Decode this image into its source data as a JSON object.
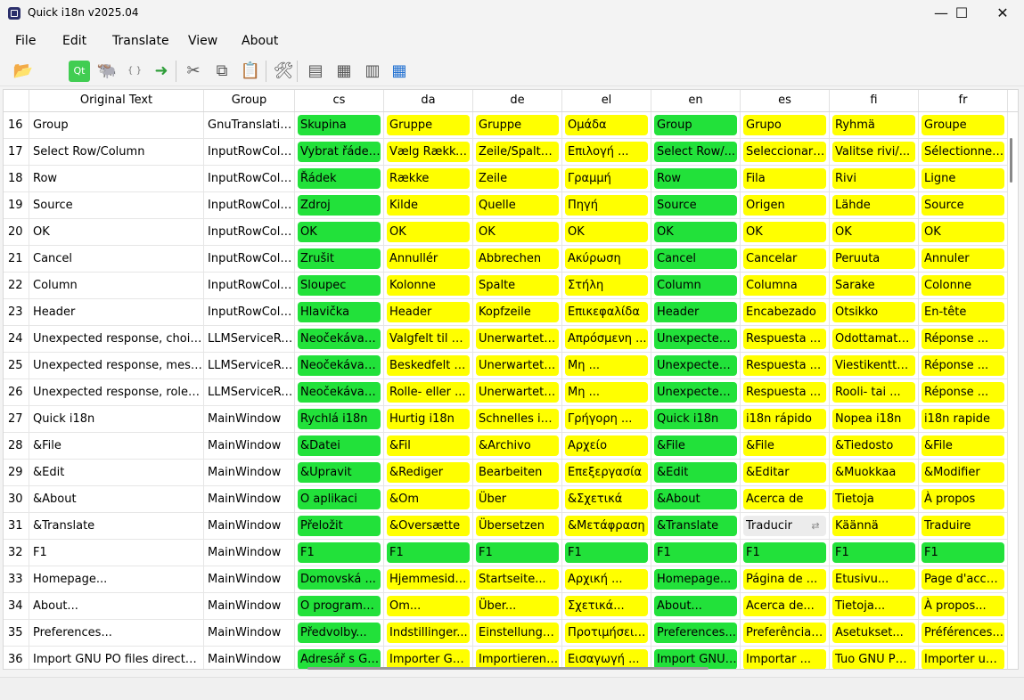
{
  "window": {
    "title": "Quick i18n v2025.04"
  },
  "window_controls": {
    "minimize": "—",
    "maximize": "☐",
    "close": "✕"
  },
  "menu": [
    "File",
    "Edit",
    "Translate",
    "View",
    "About"
  ],
  "toolbar": {
    "icons": [
      {
        "name": "open-folder-icon",
        "glyph": "📂"
      },
      {
        "name": "apple-icon",
        "glyph": ""
      },
      {
        "name": "qt-icon",
        "glyph": "Qt"
      },
      {
        "name": "gnu-icon",
        "glyph": "🐃"
      },
      {
        "name": "json-icon",
        "glyph": "{ }"
      },
      {
        "name": "export-icon",
        "glyph": "➜"
      },
      {
        "name": "cut-icon",
        "glyph": "✂"
      },
      {
        "name": "copy-icon",
        "glyph": "⧉"
      },
      {
        "name": "paste-icon",
        "glyph": "📋"
      },
      {
        "name": "tools-icon",
        "glyph": "🛠"
      },
      {
        "name": "grid-view-1-icon",
        "glyph": "▤"
      },
      {
        "name": "grid-view-2-icon",
        "glyph": "▦"
      },
      {
        "name": "grid-view-3-icon",
        "glyph": "▥"
      },
      {
        "name": "grid-view-4-icon",
        "glyph": "▦"
      }
    ]
  },
  "table": {
    "headers": {
      "original": "Original Text",
      "group": "Group"
    },
    "languages": [
      "cs",
      "da",
      "de",
      "el",
      "en",
      "es",
      "fi",
      "fr"
    ],
    "rows": [
      {
        "n": "16",
        "orig": "Group",
        "group": "GnuTranslatio...",
        "cells": [
          [
            "Skupina",
            "g"
          ],
          [
            "Gruppe",
            "y"
          ],
          [
            "Gruppe",
            "y"
          ],
          [
            "Ομάδα",
            "y"
          ],
          [
            "Group",
            "g"
          ],
          [
            "Grupo",
            "y"
          ],
          [
            "Ryhmä",
            "y"
          ],
          [
            "Groupe",
            "y"
          ]
        ]
      },
      {
        "n": "17",
        "orig": "Select Row/Column",
        "group": "InputRowColu...",
        "cells": [
          [
            "Vybrat řádek/...",
            "g"
          ],
          [
            "Vælg Række/...",
            "y"
          ],
          [
            "Zeile/Spalte ...",
            "y"
          ],
          [
            "Επιλογή ...",
            "y"
          ],
          [
            "Select Row/...",
            "g"
          ],
          [
            "Seleccionar ...",
            "y"
          ],
          [
            "Valitse rivi/...",
            "y"
          ],
          [
            "Sélectionner ...",
            "y"
          ]
        ]
      },
      {
        "n": "18",
        "orig": "Row",
        "group": "InputRowColu...",
        "cells": [
          [
            "Řádek",
            "g"
          ],
          [
            "Række",
            "y"
          ],
          [
            "Zeile",
            "y"
          ],
          [
            "Γραμμή",
            "y"
          ],
          [
            "Row",
            "g"
          ],
          [
            "Fila",
            "y"
          ],
          [
            "Rivi",
            "y"
          ],
          [
            "Ligne",
            "y"
          ]
        ]
      },
      {
        "n": "19",
        "orig": "Source",
        "group": "InputRowColu...",
        "cells": [
          [
            "Zdroj",
            "g"
          ],
          [
            "Kilde",
            "y"
          ],
          [
            "Quelle",
            "y"
          ],
          [
            "Πηγή",
            "y"
          ],
          [
            "Source",
            "g"
          ],
          [
            "Origen",
            "y"
          ],
          [
            "Lähde",
            "y"
          ],
          [
            "Source",
            "y"
          ]
        ]
      },
      {
        "n": "20",
        "orig": "OK",
        "group": "InputRowColu...",
        "cells": [
          [
            "OK",
            "g"
          ],
          [
            "OK",
            "y"
          ],
          [
            "OK",
            "y"
          ],
          [
            "OK",
            "y"
          ],
          [
            "OK",
            "g"
          ],
          [
            "OK",
            "y"
          ],
          [
            "OK",
            "y"
          ],
          [
            "OK",
            "y"
          ]
        ]
      },
      {
        "n": "21",
        "orig": "Cancel",
        "group": "InputRowColu...",
        "cells": [
          [
            "Zrušit",
            "g"
          ],
          [
            "Annullér",
            "y"
          ],
          [
            "Abbrechen",
            "y"
          ],
          [
            "Ακύρωση",
            "y"
          ],
          [
            "Cancel",
            "g"
          ],
          [
            "Cancelar",
            "y"
          ],
          [
            "Peruuta",
            "y"
          ],
          [
            "Annuler",
            "y"
          ]
        ]
      },
      {
        "n": "22",
        "orig": "Column",
        "group": "InputRowColu...",
        "cells": [
          [
            "Sloupec",
            "g"
          ],
          [
            "Kolonne",
            "y"
          ],
          [
            "Spalte",
            "y"
          ],
          [
            "Στήλη",
            "y"
          ],
          [
            "Column",
            "g"
          ],
          [
            "Columna",
            "y"
          ],
          [
            "Sarake",
            "y"
          ],
          [
            "Colonne",
            "y"
          ]
        ]
      },
      {
        "n": "23",
        "orig": "Header",
        "group": "InputRowColu...",
        "cells": [
          [
            "Hlavička",
            "g"
          ],
          [
            "Header",
            "y"
          ],
          [
            "Kopfzeile",
            "y"
          ],
          [
            "Επικεφαλίδα",
            "y"
          ],
          [
            "Header",
            "g"
          ],
          [
            "Encabezado",
            "y"
          ],
          [
            "Otsikko",
            "y"
          ],
          [
            "En-tête",
            "y"
          ]
        ]
      },
      {
        "n": "24",
        "orig": "Unexpected response, choices...",
        "group": "LLMServiceRe...",
        "cells": [
          [
            "Neočekávaná ...",
            "g"
          ],
          [
            "Valgfelt til val...",
            "y"
          ],
          [
            "Unerwartete ...",
            "y"
          ],
          [
            "Απρόσμενη ...",
            "y"
          ],
          [
            "Unexpected ...",
            "g"
          ],
          [
            "Respuesta ...",
            "y"
          ],
          [
            "Odottamaton ...",
            "y"
          ],
          [
            "Réponse ...",
            "y"
          ]
        ]
      },
      {
        "n": "25",
        "orig": "Unexpected response, messa...",
        "group": "LLMServiceRe...",
        "cells": [
          [
            "Neočekávaná ...",
            "g"
          ],
          [
            "Beskedfelt er ...",
            "y"
          ],
          [
            "Unerwartete ...",
            "y"
          ],
          [
            "Μη ...",
            "y"
          ],
          [
            "Unexpected ...",
            "g"
          ],
          [
            "Respuesta ...",
            "y"
          ],
          [
            "Viestikenttä ...",
            "y"
          ],
          [
            "Réponse ...",
            "y"
          ]
        ]
      },
      {
        "n": "26",
        "orig": "Unexpected response, role or ...",
        "group": "LLMServiceRe...",
        "cells": [
          [
            "Neočekávaná ...",
            "g"
          ],
          [
            "Rolle- eller ...",
            "y"
          ],
          [
            "Unerwartete ...",
            "y"
          ],
          [
            "Μη ...",
            "y"
          ],
          [
            "Unexpected ...",
            "g"
          ],
          [
            "Respuesta ...",
            "y"
          ],
          [
            "Rooli- tai ...",
            "y"
          ],
          [
            "Réponse ...",
            "y"
          ]
        ]
      },
      {
        "n": "27",
        "orig": "Quick i18n",
        "group": "MainWindow",
        "cells": [
          [
            "Rychlá i18n",
            "g"
          ],
          [
            "Hurtig i18n",
            "y"
          ],
          [
            "Schnelles i18n",
            "y"
          ],
          [
            "Γρήγορη ...",
            "y"
          ],
          [
            "Quick i18n",
            "g"
          ],
          [
            "i18n rápido",
            "y"
          ],
          [
            "Nopea i18n",
            "y"
          ],
          [
            "i18n rapide",
            "y"
          ]
        ]
      },
      {
        "n": "28",
        "orig": "&File",
        "group": "MainWindow",
        "cells": [
          [
            "&Datei",
            "g"
          ],
          [
            "&Fil",
            "y"
          ],
          [
            "&Archivo",
            "y"
          ],
          [
            "Αρχείο",
            "y"
          ],
          [
            "&File",
            "g"
          ],
          [
            "&File",
            "y"
          ],
          [
            "&Tiedosto",
            "y"
          ],
          [
            "&File",
            "y"
          ]
        ]
      },
      {
        "n": "29",
        "orig": "&Edit",
        "group": "MainWindow",
        "cells": [
          [
            "&Upravit",
            "g"
          ],
          [
            "&Rediger",
            "y"
          ],
          [
            "Bearbeiten",
            "y"
          ],
          [
            "Επεξεργασία",
            "y"
          ],
          [
            "&Edit",
            "g"
          ],
          [
            "&Editar",
            "y"
          ],
          [
            "&Muokkaa",
            "y"
          ],
          [
            "&Modifier",
            "y"
          ]
        ]
      },
      {
        "n": "30",
        "orig": "&About",
        "group": "MainWindow",
        "cells": [
          [
            "O aplikaci",
            "g"
          ],
          [
            "&Om",
            "y"
          ],
          [
            "Über",
            "y"
          ],
          [
            "&Σχετικά",
            "y"
          ],
          [
            "&About",
            "g"
          ],
          [
            "Acerca de",
            "y"
          ],
          [
            "Tietoja",
            "y"
          ],
          [
            "À propos",
            "y"
          ]
        ]
      },
      {
        "n": "31",
        "orig": "&Translate",
        "group": "MainWindow",
        "cells": [
          [
            "Přeložit",
            "g"
          ],
          [
            "&Oversætte",
            "y"
          ],
          [
            "Übersetzen",
            "y"
          ],
          [
            "&Μετάφραση",
            "y"
          ],
          [
            "&Translate",
            "g"
          ],
          [
            "Traducir",
            "e"
          ],
          [
            "Käännä",
            "y"
          ],
          [
            "Traduire",
            "y"
          ]
        ]
      },
      {
        "n": "32",
        "orig": "F1",
        "group": "MainWindow",
        "cells": [
          [
            "F1",
            "g"
          ],
          [
            "F1",
            "g"
          ],
          [
            "F1",
            "g"
          ],
          [
            "F1",
            "g"
          ],
          [
            "F1",
            "g"
          ],
          [
            "F1",
            "g"
          ],
          [
            "F1",
            "g"
          ],
          [
            "F1",
            "g"
          ]
        ]
      },
      {
        "n": "33",
        "orig": "Homepage...",
        "group": "MainWindow",
        "cells": [
          [
            "Domovská ...",
            "g"
          ],
          [
            "Hjemmeside...",
            "y"
          ],
          [
            "Startseite...",
            "y"
          ],
          [
            "Αρχική ...",
            "y"
          ],
          [
            "Homepage...",
            "g"
          ],
          [
            "Página de ...",
            "y"
          ],
          [
            "Etusivu...",
            "y"
          ],
          [
            "Page d'accueil...",
            "y"
          ]
        ]
      },
      {
        "n": "34",
        "orig": "About...",
        "group": "MainWindow",
        "cells": [
          [
            "O programu...",
            "g"
          ],
          [
            "Om...",
            "y"
          ],
          [
            "Über...",
            "y"
          ],
          [
            "Σχετικά...",
            "y"
          ],
          [
            "About...",
            "g"
          ],
          [
            "Acerca de...",
            "y"
          ],
          [
            "Tietoja...",
            "y"
          ],
          [
            "À propos...",
            "y"
          ]
        ]
      },
      {
        "n": "35",
        "orig": "Preferences...",
        "group": "MainWindow",
        "cells": [
          [
            "Předvolby...",
            "g"
          ],
          [
            "Indstillinger...",
            "y"
          ],
          [
            "Einstellungen...",
            "y"
          ],
          [
            "Προτιμήσεις...",
            "y"
          ],
          [
            "Preferences...",
            "g"
          ],
          [
            "Preferências...",
            "y"
          ],
          [
            "Asetukset...",
            "y"
          ],
          [
            "Préférences...",
            "y"
          ]
        ]
      },
      {
        "n": "36",
        "orig": "Import GNU PO files directory...",
        "group": "MainWindow",
        "cells": [
          [
            "Adresář s GN...",
            "g"
          ],
          [
            "Importer GN...",
            "y"
          ],
          [
            "Importieren S...",
            "y"
          ],
          [
            "Εισαγωγή ...",
            "y"
          ],
          [
            "Import GNU ...",
            "g"
          ],
          [
            "Importar ...",
            "y"
          ],
          [
            "Tuo GNU PO-...",
            "y"
          ],
          [
            "Importer un ...",
            "y"
          ]
        ]
      }
    ]
  },
  "colors": {
    "translated": "#22e13a",
    "untranslated": "#ffff00",
    "editing": "#ececec"
  }
}
